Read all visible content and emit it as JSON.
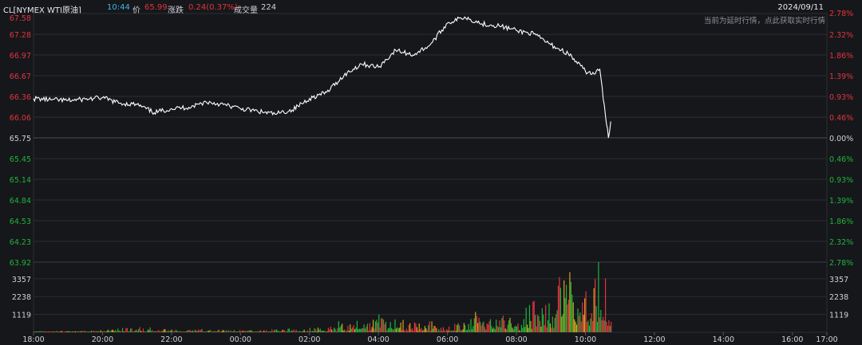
{
  "header": {
    "symbol": "CL[NYMEX WTI原油]",
    "time": "10:44",
    "price_label": "价",
    "price": "65.99",
    "change_label": "涨跌",
    "change": "0.24(0.37%)",
    "volume_label": "成交量",
    "volume": "224",
    "date": "2024/09/11",
    "delay_note": "当前为延时行情，点此获取实时行情"
  },
  "colors": {
    "background": "#16171b",
    "up": "#e0353c",
    "down": "#1fb33b",
    "line": "#ffffff",
    "grid": "#2b2d32",
    "text": "#cfd2d6"
  },
  "chart_data": {
    "type": "line",
    "title": "",
    "x_ticks": [
      "18:00",
      "20:00",
      "22:00",
      "00:00",
      "02:00",
      "04:00",
      "06:00",
      "08:00",
      "10:00",
      "12:00",
      "14:00",
      "16:00",
      "17:00"
    ],
    "price_ticks_left": [
      "67.58",
      "67.28",
      "66.97",
      "66.67",
      "66.36",
      "66.06",
      "65.75",
      "65.45",
      "65.14",
      "64.84",
      "64.53",
      "64.23",
      "63.92"
    ],
    "pct_ticks_right": [
      "2.78%",
      "2.32%",
      "1.86%",
      "1.39%",
      "0.93%",
      "0.46%",
      "0.00%",
      "0.46%",
      "0.93%",
      "1.39%",
      "1.86%",
      "2.32%",
      "2.78%"
    ],
    "ylim": [
      63.92,
      67.58
    ],
    "reference_price": 65.75,
    "volume_ticks": [
      "3357",
      "2238",
      "1119"
    ],
    "volume_ylim": [
      0,
      4400
    ],
    "series": [
      {
        "x": [
          "18:00",
          "18:30",
          "19:00",
          "19:30",
          "20:00",
          "20:30",
          "21:00",
          "21:30",
          "22:00",
          "22:30",
          "23:00",
          "23:30",
          "00:00",
          "00:30",
          "01:00",
          "01:30",
          "02:00",
          "02:30",
          "03:00",
          "03:30",
          "04:00",
          "04:30",
          "05:00",
          "05:30",
          "06:00",
          "06:30",
          "07:00",
          "07:30",
          "08:00",
          "08:30",
          "09:00",
          "09:30",
          "10:00",
          "10:15",
          "10:25",
          "10:35",
          "10:40",
          "10:44"
        ],
        "values": [
          66.33,
          66.31,
          66.3,
          66.32,
          66.34,
          66.26,
          66.24,
          66.12,
          66.18,
          66.2,
          66.28,
          66.24,
          66.18,
          66.14,
          66.1,
          66.16,
          66.33,
          66.42,
          66.67,
          66.84,
          66.79,
          67.04,
          66.97,
          67.12,
          67.44,
          67.53,
          67.43,
          67.4,
          67.33,
          67.28,
          67.12,
          66.99,
          66.73,
          66.69,
          66.76,
          66.06,
          65.75,
          65.99
        ]
      }
    ],
    "volume_series": {
      "x": [
        "18:00",
        "19:00",
        "20:00",
        "21:00",
        "22:00",
        "23:00",
        "00:00",
        "01:00",
        "02:00",
        "03:00",
        "04:00",
        "05:00",
        "06:00",
        "07:00",
        "08:00",
        "08:30",
        "09:00",
        "09:30",
        "10:00",
        "10:15",
        "10:30",
        "10:44"
      ],
      "values": [
        40,
        60,
        80,
        250,
        120,
        150,
        110,
        140,
        200,
        450,
        700,
        550,
        300,
        900,
        500,
        1300,
        1500,
        3900,
        2000,
        2400,
        4400,
        900
      ]
    }
  }
}
